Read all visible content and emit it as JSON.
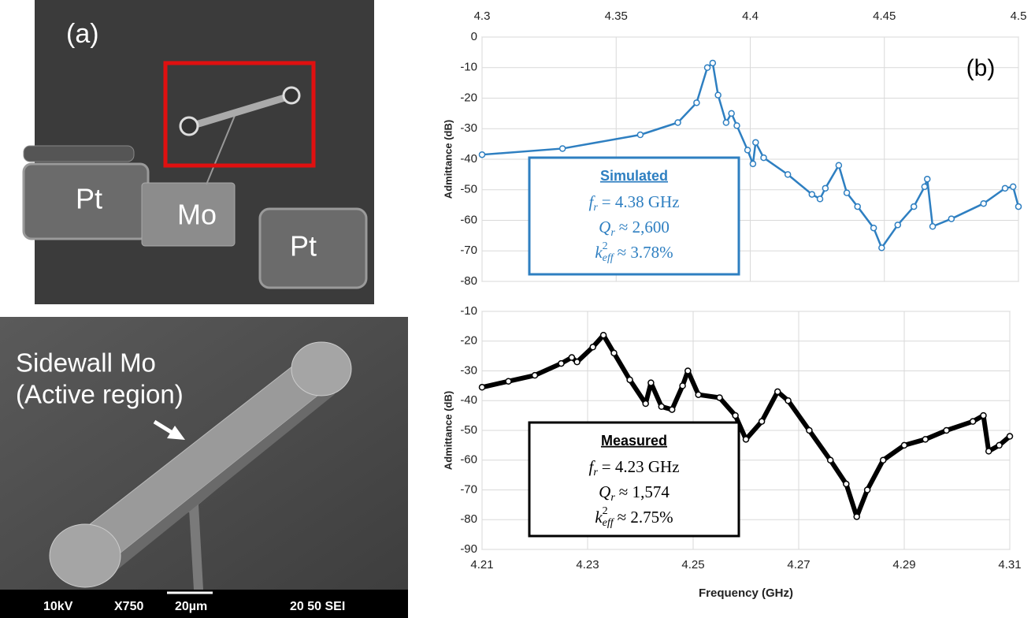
{
  "panel_a": {
    "label": "(a)",
    "pads": [
      "Pt",
      "Mo",
      "Pt"
    ]
  },
  "panel_sem": {
    "caption": [
      "Sidewall Mo",
      "(Active region)"
    ],
    "info_bar": [
      "10kV",
      "X750",
      "20µm",
      "20 50 SEI"
    ]
  },
  "chart_data": [
    {
      "type": "scatter-line",
      "annotation": "(b)",
      "y_label": "Admittance (dB)",
      "x": [
        4.3,
        4.33,
        4.359,
        4.373,
        4.38,
        4.384,
        4.386,
        4.388,
        4.391,
        4.393,
        4.395,
        4.399,
        4.401,
        4.402,
        4.405,
        4.414,
        4.423,
        4.426,
        4.428,
        4.433,
        4.436,
        4.44,
        4.446,
        4.449,
        4.455,
        4.461,
        4.465,
        4.466,
        4.468,
        4.475,
        4.487,
        4.495,
        4.498,
        4.5
      ],
      "series": [
        {
          "name": "Simulated",
          "color": "#2e7fc1",
          "values": [
            -38.5,
            -36.5,
            -32,
            -28,
            -21.5,
            -10,
            -8.5,
            -19,
            -28,
            -25,
            -29,
            -37,
            -41.5,
            -34.5,
            -39.5,
            -45,
            -51.5,
            -53,
            -49.5,
            -42,
            -51,
            -55.5,
            -62.5,
            -69,
            -61.5,
            -55.5,
            -49,
            -46.5,
            -62,
            -59.5,
            -54.5,
            -49.5,
            -49,
            -55.5
          ]
        }
      ],
      "legend_lines": [
        {
          "symbol": "f",
          "sub": "r",
          "text": "= 4.38 GHz"
        },
        {
          "symbol": "Q",
          "sub": "r",
          "text": "≈ 2,600"
        },
        {
          "symbol": "k",
          "sup": "2",
          "sub": "eff",
          "text": "≈ 3.78%"
        }
      ],
      "xlim": [
        4.3,
        4.5
      ],
      "xticks": [
        4.3,
        4.35,
        4.4,
        4.45,
        4.5
      ],
      "ylim": [
        -80,
        0
      ],
      "yticks": [
        0,
        -10,
        -20,
        -30,
        -40,
        -50,
        -60,
        -70,
        -80
      ],
      "grid": true
    },
    {
      "type": "scatter-line",
      "y_label": "Admittance (dB)",
      "x_label": "Frequency (GHz)",
      "x": [
        4.21,
        4.215,
        4.22,
        4.225,
        4.227,
        4.228,
        4.231,
        4.233,
        4.235,
        4.238,
        4.241,
        4.242,
        4.244,
        4.246,
        4.248,
        4.249,
        4.251,
        4.255,
        4.258,
        4.26,
        4.263,
        4.266,
        4.268,
        4.272,
        4.276,
        4.279,
        4.281,
        4.283,
        4.286,
        4.29,
        4.294,
        4.298,
        4.303,
        4.305,
        4.306,
        4.308,
        4.31
      ],
      "series": [
        {
          "name": "Measured",
          "color": "#000000",
          "values": [
            -35.5,
            -33.5,
            -31.5,
            -27.5,
            -25.5,
            -27,
            -22,
            -18,
            -24,
            -33,
            -41,
            -34,
            -42,
            -43,
            -35,
            -30,
            -38,
            -39,
            -45,
            -53,
            -47,
            -37,
            -40,
            -50,
            -60,
            -68,
            -79,
            -70,
            -60,
            -55,
            -53,
            -50,
            -47,
            -45,
            -57,
            -55,
            -52
          ]
        }
      ],
      "legend_lines": [
        {
          "symbol": "f",
          "sub": "r",
          "text": "= 4.23 GHz"
        },
        {
          "symbol": "Q",
          "sub": "r",
          "text": "≈ 1,574"
        },
        {
          "symbol": "k",
          "sup": "2",
          "sub": "eff",
          "text": "≈ 2.75%"
        }
      ],
      "xlim": [
        4.21,
        4.31
      ],
      "xticks": [
        4.21,
        4.23,
        4.25,
        4.27,
        4.29,
        4.31
      ],
      "ylim": [
        -90,
        -10
      ],
      "yticks": [
        -10,
        -20,
        -30,
        -40,
        -50,
        -60,
        -70,
        -80,
        -90
      ],
      "grid": true
    }
  ]
}
